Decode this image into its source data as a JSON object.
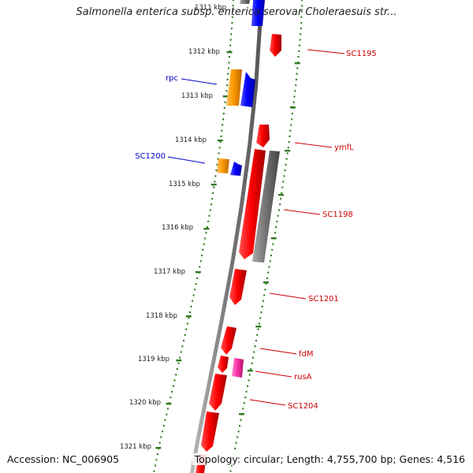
{
  "title": "Salmonella enterica subsp. enterica serovar Choleraesuis str...",
  "footer": {
    "accession": "Accession: NC_006905",
    "stats": "Topology: circular; Length: 4,755,700 bp; Genes: 4,516"
  },
  "kbp_labels": [
    "1311 kbp",
    "1312 kbp",
    "1313 kbp",
    "1314 kbp",
    "1315 kbp",
    "1316 kbp",
    "1317 kbp",
    "1318 kbp",
    "1319 kbp",
    "1320 kbp",
    "1321 kbp"
  ],
  "colors": {
    "forward_gene": "#ff0000",
    "reverse_gene": "#ff0000",
    "orange_gene": "#ff9900",
    "blue_gene": "#0000ff",
    "gray_gene": "#777777",
    "magenta_gene": "#ff33aa",
    "backbone": "#888888",
    "tick": "#2e7d1e",
    "label_red": "#cc0000",
    "label_blue": "#0000cc"
  },
  "gene_labels": [
    {
      "text": "SC1195",
      "color": "red"
    },
    {
      "text": "rpc",
      "color": "blue"
    },
    {
      "text": "ymfL",
      "color": "red"
    },
    {
      "text": "SC1200",
      "color": "blue"
    },
    {
      "text": "SC1198",
      "color": "red"
    },
    {
      "text": "SC1201",
      "color": "red"
    },
    {
      "text": "fdM",
      "color": "red"
    },
    {
      "text": "rusA",
      "color": "red"
    },
    {
      "text": "SC1204",
      "color": "red"
    }
  ]
}
